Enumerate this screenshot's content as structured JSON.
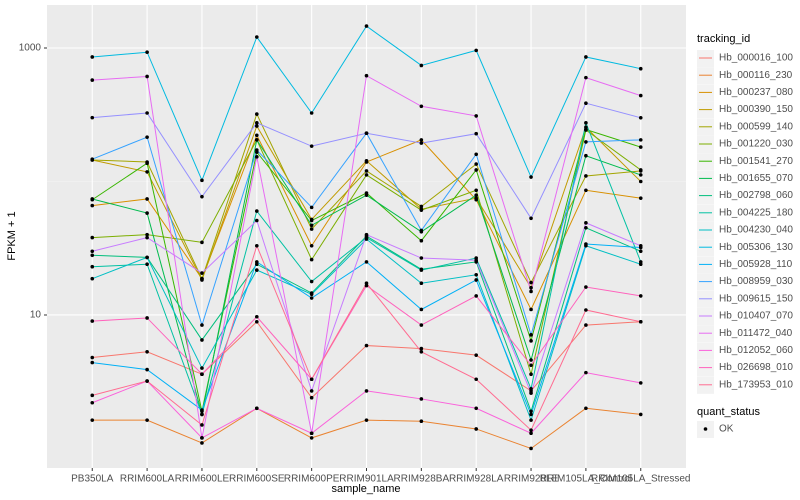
{
  "chart_data": {
    "type": "line",
    "x_label": "sample_name",
    "y_label": "FPKM + 1",
    "log_y": true,
    "grid": true,
    "legend": "right",
    "legend_title": "tracking_id",
    "categories": [
      "PB350LA",
      "RRIM600LA",
      "RRIM600LE",
      "RRIM600SE",
      "RRIM600PE",
      "RRIM901LA",
      "RRIM928BA",
      "RRIM928LA",
      "RRIM928LE",
      "RRIM105LA_Control",
      "RRIM105LA_Stressed"
    ],
    "ylim": [
      0.714,
      2100
    ],
    "yticks": [
      10,
      1000
    ],
    "point_color": "#000000",
    "shape_legend": {
      "title": "quant_status",
      "entries": [
        "OK"
      ]
    },
    "series": [
      {
        "name": "Hb_000016_100",
        "color": "#F8766D",
        "values": [
          4.8,
          5.3,
          3.6,
          8.9,
          2.4,
          5.9,
          5.6,
          5.0,
          2.7,
          8.4,
          8.9
        ]
      },
      {
        "name": "Hb_000116_230",
        "color": "#EA8331",
        "values": [
          1.63,
          1.63,
          1.1,
          2.0,
          1.2,
          1.63,
          1.6,
          1.4,
          1.0,
          2.0,
          1.8
        ]
      },
      {
        "name": "Hb_000237_080",
        "color": "#D89000",
        "values": [
          66,
          74,
          18.7,
          222,
          33,
          140,
          205,
          73,
          11,
          86,
          75
        ]
      },
      {
        "name": "Hb_000390_150",
        "color": "#C09B00",
        "values": [
          145,
          118,
          18.3,
          260,
          52,
          143,
          62,
          75,
          16,
          255,
          100
        ]
      },
      {
        "name": "Hb_000599_140",
        "color": "#A3A500",
        "values": [
          145,
          140,
          18.7,
          320,
          44,
          120,
          65,
          135,
          17.5,
          110,
          120
        ]
      },
      {
        "name": "Hb_001220_030",
        "color": "#7CAE00",
        "values": [
          38,
          40,
          35,
          205,
          26,
          112,
          61,
          86,
          3.6,
          243,
          122
        ]
      },
      {
        "name": "Hb_001541_270",
        "color": "#39B600",
        "values": [
          73,
          137,
          1.9,
          166,
          51,
          82,
          36,
          122,
          6.4,
          245,
          181
        ]
      },
      {
        "name": "Hb_001655_070",
        "color": "#00BB4E",
        "values": [
          74,
          58,
          1.8,
          205,
          47,
          79,
          42,
          79,
          4.6,
          156,
          112
        ]
      },
      {
        "name": "Hb_002798_060",
        "color": "#00BF7D",
        "values": [
          28,
          27,
          6.5,
          24,
          14.6,
          39,
          22,
          25,
          1.9,
          45,
          30
        ]
      },
      {
        "name": "Hb_004225_180",
        "color": "#00C1A3",
        "values": [
          23,
          24,
          1.8,
          60,
          17.8,
          38,
          21.7,
          26.7,
          2.8,
          275,
          25
        ]
      },
      {
        "name": "Hb_004230_040",
        "color": "#00BFC4",
        "values": [
          18.7,
          27,
          4.0,
          21.7,
          14.3,
          37,
          17.3,
          20,
          1.63,
          33,
          24
        ]
      },
      {
        "name": "Hb_005306_130",
        "color": "#00BAE0",
        "values": [
          857,
          930,
          102,
          1208,
          326,
          1460,
          740,
          960,
          108,
          857,
          700
        ]
      },
      {
        "name": "Hb_005928_110",
        "color": "#00B0F6",
        "values": [
          4.4,
          3.9,
          1.94,
          25,
          13.4,
          25,
          11,
          18.3,
          1.8,
          34,
          32
        ]
      },
      {
        "name": "Hb_008959_030",
        "color": "#35A2FF",
        "values": [
          147,
          215,
          8.4,
          172,
          64,
          230,
          43,
          160,
          7.1,
          198,
          205
        ]
      },
      {
        "name": "Hb_009615_150",
        "color": "#9590FF",
        "values": [
          301,
          326,
          77,
          275,
          184,
          230,
          194,
          228,
          53,
          386,
          300
        ]
      },
      {
        "name": "Hb_010407_070",
        "color": "#C77CFF",
        "values": [
          30,
          38,
          20.6,
          51,
          2.7,
          40,
          26.7,
          25.7,
          2.6,
          49,
          33
        ]
      },
      {
        "name": "Hb_011472_040",
        "color": "#E76BF3",
        "values": [
          575,
          612,
          1.2,
          153,
          1.3,
          620,
          366,
          310,
          15,
          600,
          440
        ]
      },
      {
        "name": "Hb_012052_060",
        "color": "#FA62DB",
        "values": [
          2.2,
          3.2,
          1.2,
          2.0,
          1.3,
          2.7,
          2.35,
          2.0,
          1.3,
          3.7,
          3.1
        ]
      },
      {
        "name": "Hb_026698_010",
        "color": "#FF62BC",
        "values": [
          9.0,
          9.5,
          3.6,
          9.7,
          3.3,
          16.6,
          8.4,
          13.9,
          4.2,
          16.2,
          13.9
        ]
      },
      {
        "name": "Hb_173953_010",
        "color": "#FF6C91",
        "values": [
          2.5,
          3.2,
          1.5,
          33,
          3.3,
          17.3,
          5.3,
          3.3,
          1.37,
          10.9,
          8.9
        ]
      }
    ]
  }
}
